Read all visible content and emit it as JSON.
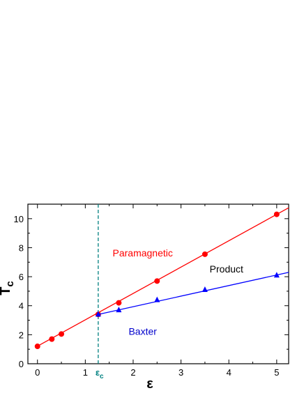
{
  "chart_data": {
    "type": "line",
    "xlabel": "ε",
    "ylabel_main": "T",
    "ylabel_sub": "c",
    "xlim": [
      -0.2,
      5.25
    ],
    "ylim": [
      0,
      11
    ],
    "x_ticks": [
      0,
      1,
      2,
      3,
      4,
      5
    ],
    "y_ticks": [
      0,
      2,
      4,
      6,
      8,
      10
    ],
    "grid": false,
    "critical_point": {
      "x": 1.27,
      "label_main": "ε",
      "label_sub": "c",
      "color": "#008080"
    },
    "series": [
      {
        "marker": "circle",
        "color": "#ff0000",
        "points": [
          {
            "x": 0,
            "y": 1.2
          },
          {
            "x": 0.3,
            "y": 1.7
          },
          {
            "x": 0.5,
            "y": 2.05
          },
          {
            "x": 1.27,
            "y": 3.4
          },
          {
            "x": 1.7,
            "y": 4.2
          },
          {
            "x": 2.5,
            "y": 5.7
          },
          {
            "x": 3.5,
            "y": 7.55
          },
          {
            "x": 5.0,
            "y": 10.3
          }
        ],
        "fit_line": {
          "x": [
            -0.05,
            5.25
          ],
          "y": [
            1.12,
            10.75
          ]
        }
      },
      {
        "marker": "triangle",
        "color": "#0000ff",
        "points": [
          {
            "x": 1.27,
            "y": 3.4
          },
          {
            "x": 1.7,
            "y": 3.7
          },
          {
            "x": 2.5,
            "y": 4.4
          },
          {
            "x": 3.5,
            "y": 5.1
          },
          {
            "x": 5.0,
            "y": 6.1
          }
        ],
        "fit_line": {
          "x": [
            1.27,
            5.25
          ],
          "y": [
            3.4,
            6.3
          ]
        }
      }
    ],
    "annotations": [
      {
        "text": "Paramagnetic",
        "x": 2.2,
        "y": 7.4,
        "color": "#ff0000"
      },
      {
        "text": "Product",
        "x": 3.95,
        "y": 6.3,
        "color": "#000000"
      },
      {
        "text": "Baxter",
        "x": 2.2,
        "y": 2.0,
        "color": "#0000cc"
      }
    ]
  }
}
